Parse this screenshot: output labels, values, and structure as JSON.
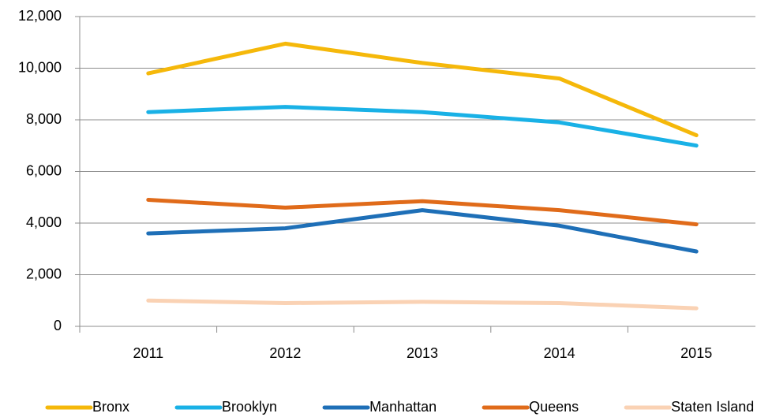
{
  "chart_data": {
    "type": "line",
    "categories": [
      "2011",
      "2012",
      "2013",
      "2014",
      "2015"
    ],
    "series": [
      {
        "name": "Bronx",
        "color": "#f5b80a",
        "values": [
          9800,
          10950,
          10200,
          9600,
          7400
        ]
      },
      {
        "name": "Brooklyn",
        "color": "#19b1e6",
        "values": [
          8300,
          8500,
          8300,
          7900,
          7000
        ]
      },
      {
        "name": "Manhattan",
        "color": "#1e6fb7",
        "values": [
          3600,
          3800,
          4500,
          3900,
          2900
        ]
      },
      {
        "name": "Queens",
        "color": "#e06b1a",
        "values": [
          4900,
          4600,
          4850,
          4500,
          3950
        ]
      },
      {
        "name": "Staten Island",
        "color": "#fad2b4",
        "values": [
          1000,
          900,
          950,
          900,
          700
        ]
      }
    ],
    "ylim": [
      0,
      12000
    ],
    "yticks": [
      0,
      {
        "value": 2000,
        "label": "2,000"
      },
      {
        "value": 4000,
        "label": "4,000"
      },
      {
        "value": 6000,
        "label": "6,000"
      },
      {
        "value": 8000,
        "label": "8,000"
      },
      {
        "value": 10000,
        "label": "10,000"
      },
      {
        "value": 12000,
        "label": "12,000"
      }
    ],
    "grid": true,
    "legend": "bottom"
  }
}
